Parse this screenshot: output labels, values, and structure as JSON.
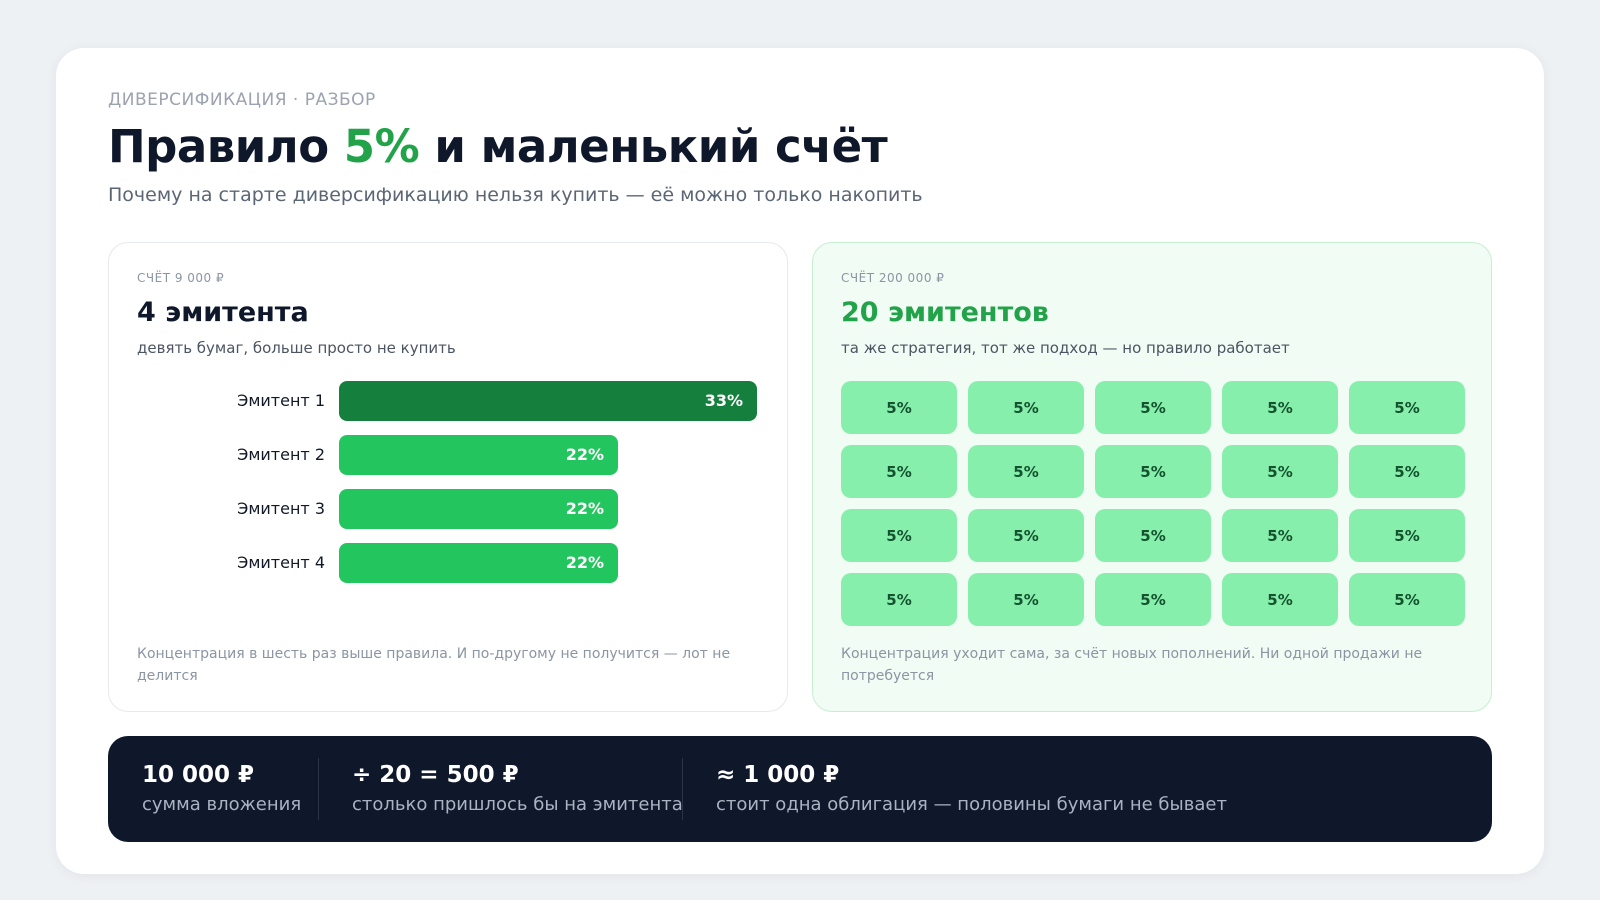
{
  "header": {
    "eyebrow": "ДИВЕРСИФИКАЦИЯ · РАЗБОР",
    "title_pre": "Правило ",
    "title_accent": "5%",
    "title_post": " и маленький счёт",
    "subtitle": "Почему на старте диверсификацию нельзя купить — её можно только накопить"
  },
  "left_panel": {
    "label": "СЧЁТ 9 000 ₽",
    "heading": "4 эмитента",
    "description": "девять бумаг, больше просто не купить",
    "footnote": "Концентрация в шесть раз выше правила. И по-другому не получится — лот не делится"
  },
  "chart_data": {
    "type": "bar",
    "orientation": "horizontal",
    "categories": [
      "Эмитент 1",
      "Эмитент 2",
      "Эмитент 3",
      "Эмитент 4"
    ],
    "values": [
      33,
      22,
      22,
      22
    ],
    "value_labels": [
      "33%",
      "22%",
      "22%",
      "22%"
    ],
    "xlim": [
      0,
      33
    ]
  },
  "right_panel": {
    "label": "СЧЁТ 200 000 ₽",
    "heading": "20 эмитентов",
    "description": "та же стратегия, тот же подход — но правило работает",
    "cell_label": "5%",
    "rows": 4,
    "cols": 5,
    "footnote": "Концентрация уходит сама, за счёт новых пополнений. Ни одной продажи не потребуется"
  },
  "stats": [
    {
      "value": "10 000 ₽",
      "label": "сумма вложения"
    },
    {
      "value": "÷ 20 = 500 ₽",
      "label": "столько пришлось бы на эмитента"
    },
    {
      "value": "≈ 1 000 ₽",
      "label": "стоит одна облигация — половины бумаги не бывает"
    }
  ],
  "colors": {
    "accent": "#22a34a",
    "bar_top": "#15803d",
    "bar": "#22c55e",
    "cell": "#86efac",
    "stats_bg": "#0f172a"
  }
}
